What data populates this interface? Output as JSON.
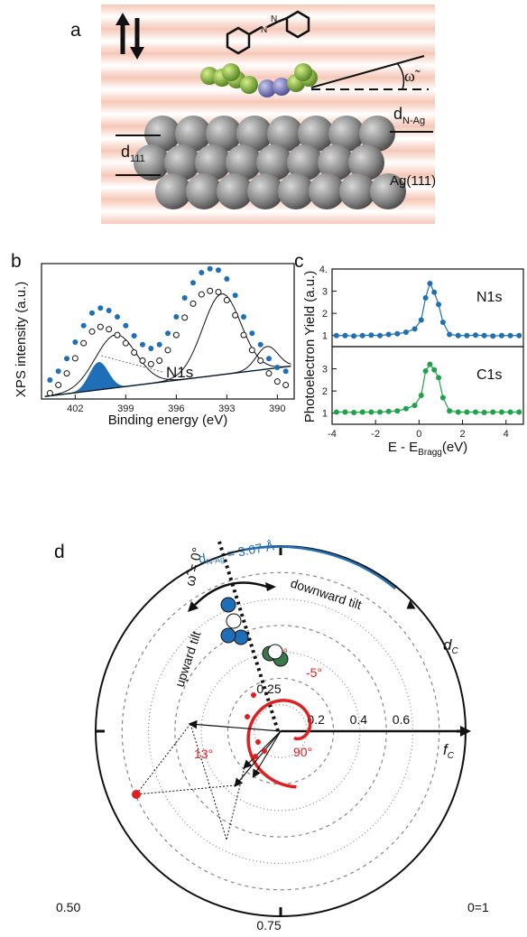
{
  "panel_a": {
    "label": "a",
    "d_n_ag_label": "d",
    "d_n_ag_sub": "N-Ag",
    "d_111_label": "d",
    "d_111_sub": "111",
    "omega_label": "ω̃",
    "substrate_label": "Ag(111)"
  },
  "panel_b": {
    "label": "b",
    "ylabel": "XPS intensity (a.u.)",
    "xlabel": "Binding energy (eV)",
    "xticks": [
      "402",
      "399",
      "396",
      "393",
      "390"
    ],
    "annotation": "N1s",
    "colors": {
      "data": "#1f6fb8",
      "fit": "#000000"
    }
  },
  "panel_c": {
    "label": "c",
    "ylabel": "Photoelectron Yield (a.u.)",
    "xlabel_main": "E - E",
    "xlabel_sub": "Bragg",
    "xlabel_unit": "(eV)",
    "xticks": [
      "-4",
      "-2",
      "0",
      "2",
      "4"
    ],
    "yticks_top": [
      "1",
      "2",
      "3",
      "4."
    ],
    "yticks_bottom": [
      "1",
      "2",
      "3"
    ],
    "top_label": "N1s",
    "bottom_label": "C1s",
    "colors": {
      "n1s": "#1f6fb8",
      "c1s": "#1fa34a"
    }
  },
  "chart_data": [
    {
      "type": "line",
      "ylabel": "Photoelectron Yield (a.u.)",
      "xlabel": "E - EBragg(eV)",
      "xlim": [
        -4,
        4.8
      ],
      "series": [
        {
          "name": "N1s",
          "x": [
            -3.8,
            -3.4,
            -3.0,
            -2.6,
            -2.2,
            -1.8,
            -1.4,
            -1.0,
            -0.6,
            -0.2,
            0.1,
            0.3,
            0.5,
            0.7,
            0.9,
            1.1,
            1.4,
            1.8,
            2.2,
            2.6,
            3.0,
            3.4,
            3.8,
            4.2,
            4.6
          ],
          "y": [
            1.0,
            1.0,
            0.98,
            1.0,
            1.02,
            1.0,
            1.05,
            1.08,
            1.15,
            1.3,
            1.7,
            2.7,
            3.35,
            2.95,
            2.4,
            1.6,
            1.05,
            1.0,
            1.0,
            1.02,
            1.0,
            0.98,
            1.0,
            1.0,
            1.0
          ]
        },
        {
          "name": "C1s",
          "x": [
            -3.8,
            -3.4,
            -3.0,
            -2.6,
            -2.2,
            -1.8,
            -1.4,
            -1.0,
            -0.6,
            -0.2,
            0.1,
            0.3,
            0.5,
            0.7,
            0.9,
            1.1,
            1.4,
            1.8,
            2.2,
            2.6,
            3.0,
            3.4,
            3.8,
            4.2,
            4.6
          ],
          "y": [
            1.05,
            1.05,
            1.03,
            1.05,
            1.05,
            1.05,
            1.08,
            1.1,
            1.2,
            1.35,
            1.8,
            2.9,
            3.2,
            2.95,
            2.6,
            1.7,
            1.1,
            1.05,
            1.05,
            1.05,
            1.03,
            1.05,
            1.05,
            1.05,
            1.05
          ]
        }
      ]
    },
    {
      "type": "line",
      "ylabel": "XPS intensity (a.u.)",
      "xlabel": "Binding energy (eV)",
      "xlim": [
        404,
        389
      ],
      "series": [
        {
          "name": "data",
          "x": [
            403.5,
            403.0,
            402.5,
            402.0,
            401.5,
            401.0,
            400.5,
            400.0,
            399.5,
            399.0,
            398.5,
            398.0,
            397.5,
            397.0,
            396.5,
            396.0,
            395.5,
            395.0,
            394.5,
            394.0,
            393.5,
            393.0,
            392.5,
            392.0,
            391.5,
            391.0,
            390.5,
            390.0,
            389.5
          ],
          "y": [
            0.05,
            0.12,
            0.22,
            0.35,
            0.48,
            0.58,
            0.62,
            0.6,
            0.55,
            0.48,
            0.4,
            0.33,
            0.3,
            0.33,
            0.42,
            0.55,
            0.7,
            0.82,
            0.9,
            0.93,
            0.92,
            0.85,
            0.72,
            0.55,
            0.42,
            0.33,
            0.22,
            0.15,
            0.12
          ]
        }
      ]
    }
  ],
  "panel_d": {
    "label": "d",
    "phase_top": "0.25",
    "phase_left": "0.50",
    "phase_bottom": "0.75",
    "phase_right": "0=1",
    "fc_label": "f",
    "fc_sub": "C",
    "dc_label": "d",
    "dc_sub": "C",
    "omega_zero": "ω̃ = 0°",
    "dnag_text": "d",
    "dnag_sub": "N-Ag",
    "dnag_value": "= 3.07 Å",
    "radial_ticks": [
      "0.2",
      "0.4",
      "0.6"
    ],
    "upward_tilt": "upward tilt",
    "downward_tilt": "downward tilt",
    "angle_m1": "-1°",
    "angle_m5": "-5°",
    "angle_13": "13°",
    "angle_90": "90°",
    "colors": {
      "blue": "#1f6fb8",
      "green": "#3a7a4a",
      "red": "#e02020"
    }
  }
}
